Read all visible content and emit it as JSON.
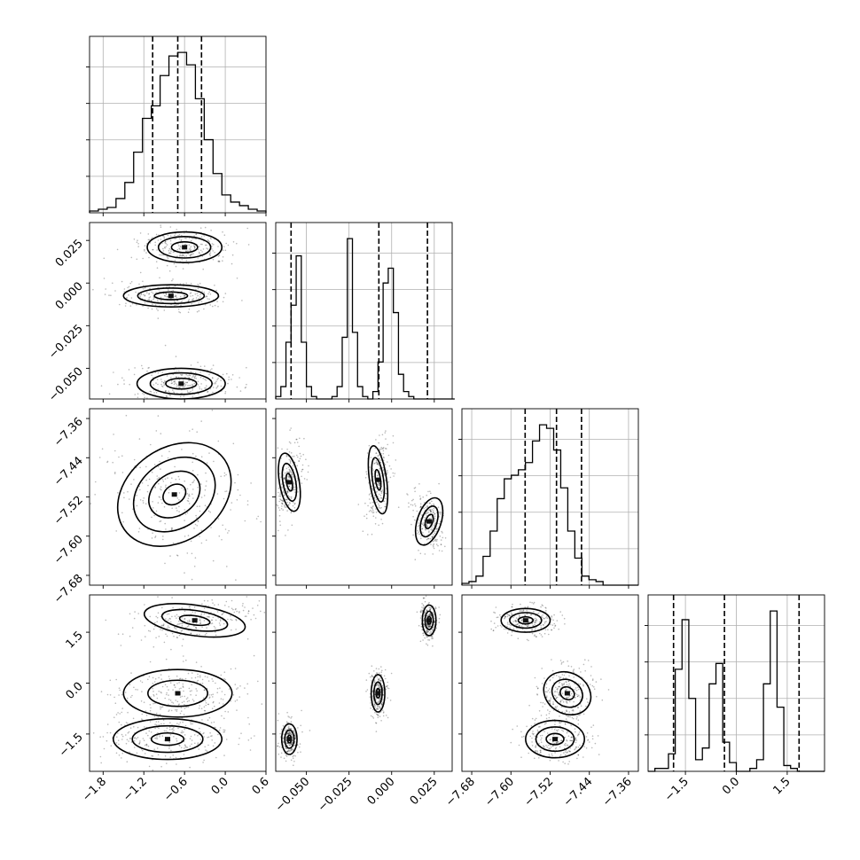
{
  "chart_data": {
    "type": "corner",
    "n_params": 4,
    "params": [
      {
        "ticks": [
          -1.8,
          -1.2,
          -0.6,
          0.0,
          0.6
        ],
        "tick_labels": [
          "−1.8",
          "−1.2",
          "−0.6",
          "0.0",
          "0.6"
        ],
        "range": [
          -2.0,
          0.6
        ],
        "quantiles": [
          -1.07,
          -0.7,
          -0.35
        ],
        "hist": {
          "edges_start": -2.0,
          "bin_width": 0.13,
          "counts": [
            1,
            2,
            3,
            8,
            17,
            34,
            53,
            60,
            77,
            88,
            90,
            83,
            64,
            41,
            22,
            10,
            6,
            4,
            2,
            1
          ]
        }
      },
      {
        "ticks": [
          -0.05,
          -0.025,
          0.0,
          0.025
        ],
        "tick_labels": [
          "−0.050",
          "−0.025",
          "0.000",
          "0.025"
        ],
        "range": [
          -0.068,
          0.0355
        ],
        "quantiles": [
          -0.059,
          -0.0075,
          0.021
        ],
        "hist": {
          "edges_start": -0.068,
          "bin_width": 0.003,
          "counts": [
            1,
            5,
            23,
            38,
            58,
            23,
            5,
            1,
            0,
            0,
            0,
            1,
            5,
            25,
            65,
            27,
            5,
            1,
            0,
            3,
            15,
            47,
            53,
            35,
            10,
            3,
            1,
            0,
            0,
            0,
            0,
            0,
            0,
            0,
            0
          ]
        }
      },
      {
        "ticks": [
          -7.68,
          -7.6,
          -7.52,
          -7.44,
          -7.36
        ],
        "tick_labels": [
          "−7.68",
          "−7.60",
          "−7.52",
          "−7.44",
          "−7.36"
        ],
        "range": [
          -7.7,
          -7.34
        ],
        "quantiles": [
          -7.571,
          -7.507,
          -7.456
        ],
        "hist": {
          "edges_start": -7.7,
          "bin_width": 0.0144,
          "counts": [
            1,
            2,
            5,
            16,
            30,
            48,
            59,
            61,
            64,
            68,
            80,
            89,
            87,
            75,
            54,
            30,
            15,
            5,
            3,
            2,
            0,
            0,
            0,
            0,
            0
          ]
        }
      },
      {
        "ticks": [
          -1.5,
          0.0,
          1.5
        ],
        "tick_labels": [
          "−1.5",
          "0.0",
          "1.5"
        ],
        "range": [
          -2.6,
          2.6
        ],
        "quantiles": [
          -1.85,
          -0.35,
          1.85
        ],
        "hist": {
          "edges_start": -2.6,
          "bin_width": 0.2,
          "counts": [
            0,
            1,
            1,
            6,
            35,
            52,
            25,
            4,
            8,
            30,
            37,
            10,
            3,
            0,
            0,
            1,
            4,
            30,
            55,
            22,
            2,
            1,
            0,
            0,
            0,
            0
          ]
        }
      }
    ],
    "pairs": [
      {
        "row": 1,
        "col": 0,
        "ylim": [
          -0.068,
          0.0355
        ],
        "clusters": [
          {
            "cx": -0.6,
            "cy": 0.021,
            "rx": 0.55,
            "ry": 0.009,
            "rot": 0,
            "levels": [
              1.0,
              0.7,
              0.35
            ]
          },
          {
            "cx": -0.8,
            "cy": -0.0075,
            "rx": 0.7,
            "ry": 0.0065,
            "rot": 0,
            "levels": [
              1.0,
              0.7,
              0.35
            ]
          },
          {
            "cx": -0.65,
            "cy": -0.059,
            "rx": 0.65,
            "ry": 0.009,
            "rot": 0,
            "levels": [
              1.0,
              0.7,
              0.35
            ]
          }
        ]
      },
      {
        "row": 2,
        "col": 0,
        "ylim": [
          -7.7,
          -7.34
        ],
        "clusters": [
          {
            "cx": -0.75,
            "cy": -7.515,
            "rx": 0.9,
            "ry": 0.095,
            "rot": 35,
            "levels": [
              1.0,
              0.72,
              0.45,
              0.2
            ]
          }
        ]
      },
      {
        "row": 2,
        "col": 1,
        "ylim": [
          -7.7,
          -7.34
        ],
        "clusters": [
          {
            "cx": -0.06,
            "cy": -7.49,
            "rx": 0.0058,
            "ry": 0.06,
            "rot": 10,
            "levels": [
              1.0,
              0.65,
              0.3
            ]
          },
          {
            "cx": -0.008,
            "cy": -7.485,
            "rx": 0.005,
            "ry": 0.07,
            "rot": 8,
            "levels": [
              1.0,
              0.65,
              0.3
            ]
          },
          {
            "cx": 0.022,
            "cy": -7.57,
            "rx": 0.007,
            "ry": 0.05,
            "rot": -18,
            "levels": [
              1.0,
              0.65,
              0.3
            ]
          }
        ]
      },
      {
        "row": 3,
        "col": 0,
        "ylim": [
          -2.6,
          2.6
        ],
        "clusters": [
          {
            "cx": -0.45,
            "cy": 1.85,
            "rx": 0.75,
            "ry": 0.45,
            "rot": -8,
            "levels": [
              1.0,
              0.65,
              0.3
            ]
          },
          {
            "cx": -0.7,
            "cy": -0.3,
            "rx": 0.8,
            "ry": 0.7,
            "rot": 0,
            "levels": [
              1.0,
              0.55
            ]
          },
          {
            "cx": -0.85,
            "cy": -1.65,
            "rx": 0.8,
            "ry": 0.6,
            "rot": 0,
            "levels": [
              1.0,
              0.65,
              0.3
            ]
          }
        ]
      },
      {
        "row": 3,
        "col": 1,
        "ylim": [
          -2.6,
          2.6
        ],
        "clusters": [
          {
            "cx": 0.022,
            "cy": 1.85,
            "rx": 0.004,
            "ry": 0.45,
            "rot": 0,
            "levels": [
              1.0,
              0.6,
              0.25
            ]
          },
          {
            "cx": -0.008,
            "cy": -0.3,
            "rx": 0.004,
            "ry": 0.55,
            "rot": 0,
            "levels": [
              1.0,
              0.6,
              0.25
            ]
          },
          {
            "cx": -0.06,
            "cy": -1.65,
            "rx": 0.0045,
            "ry": 0.45,
            "rot": 0,
            "levels": [
              1.0,
              0.6,
              0.25
            ]
          }
        ]
      },
      {
        "row": 3,
        "col": 2,
        "ylim": [
          -2.6,
          2.6
        ],
        "clusters": [
          {
            "cx": -7.57,
            "cy": 1.85,
            "rx": 0.05,
            "ry": 0.35,
            "rot": 0,
            "levels": [
              1.0,
              0.65,
              0.3
            ]
          },
          {
            "cx": -7.485,
            "cy": -0.3,
            "rx": 0.05,
            "ry": 0.6,
            "rot": -30,
            "levels": [
              1.0,
              0.65,
              0.3
            ]
          },
          {
            "cx": -7.51,
            "cy": -1.65,
            "rx": 0.06,
            "ry": 0.55,
            "rot": 0,
            "levels": [
              1.0,
              0.65,
              0.3
            ]
          }
        ]
      }
    ],
    "colors": {
      "contour": "#000000",
      "density": "#000000",
      "grid": "#b0b0b0"
    },
    "grid": true
  }
}
